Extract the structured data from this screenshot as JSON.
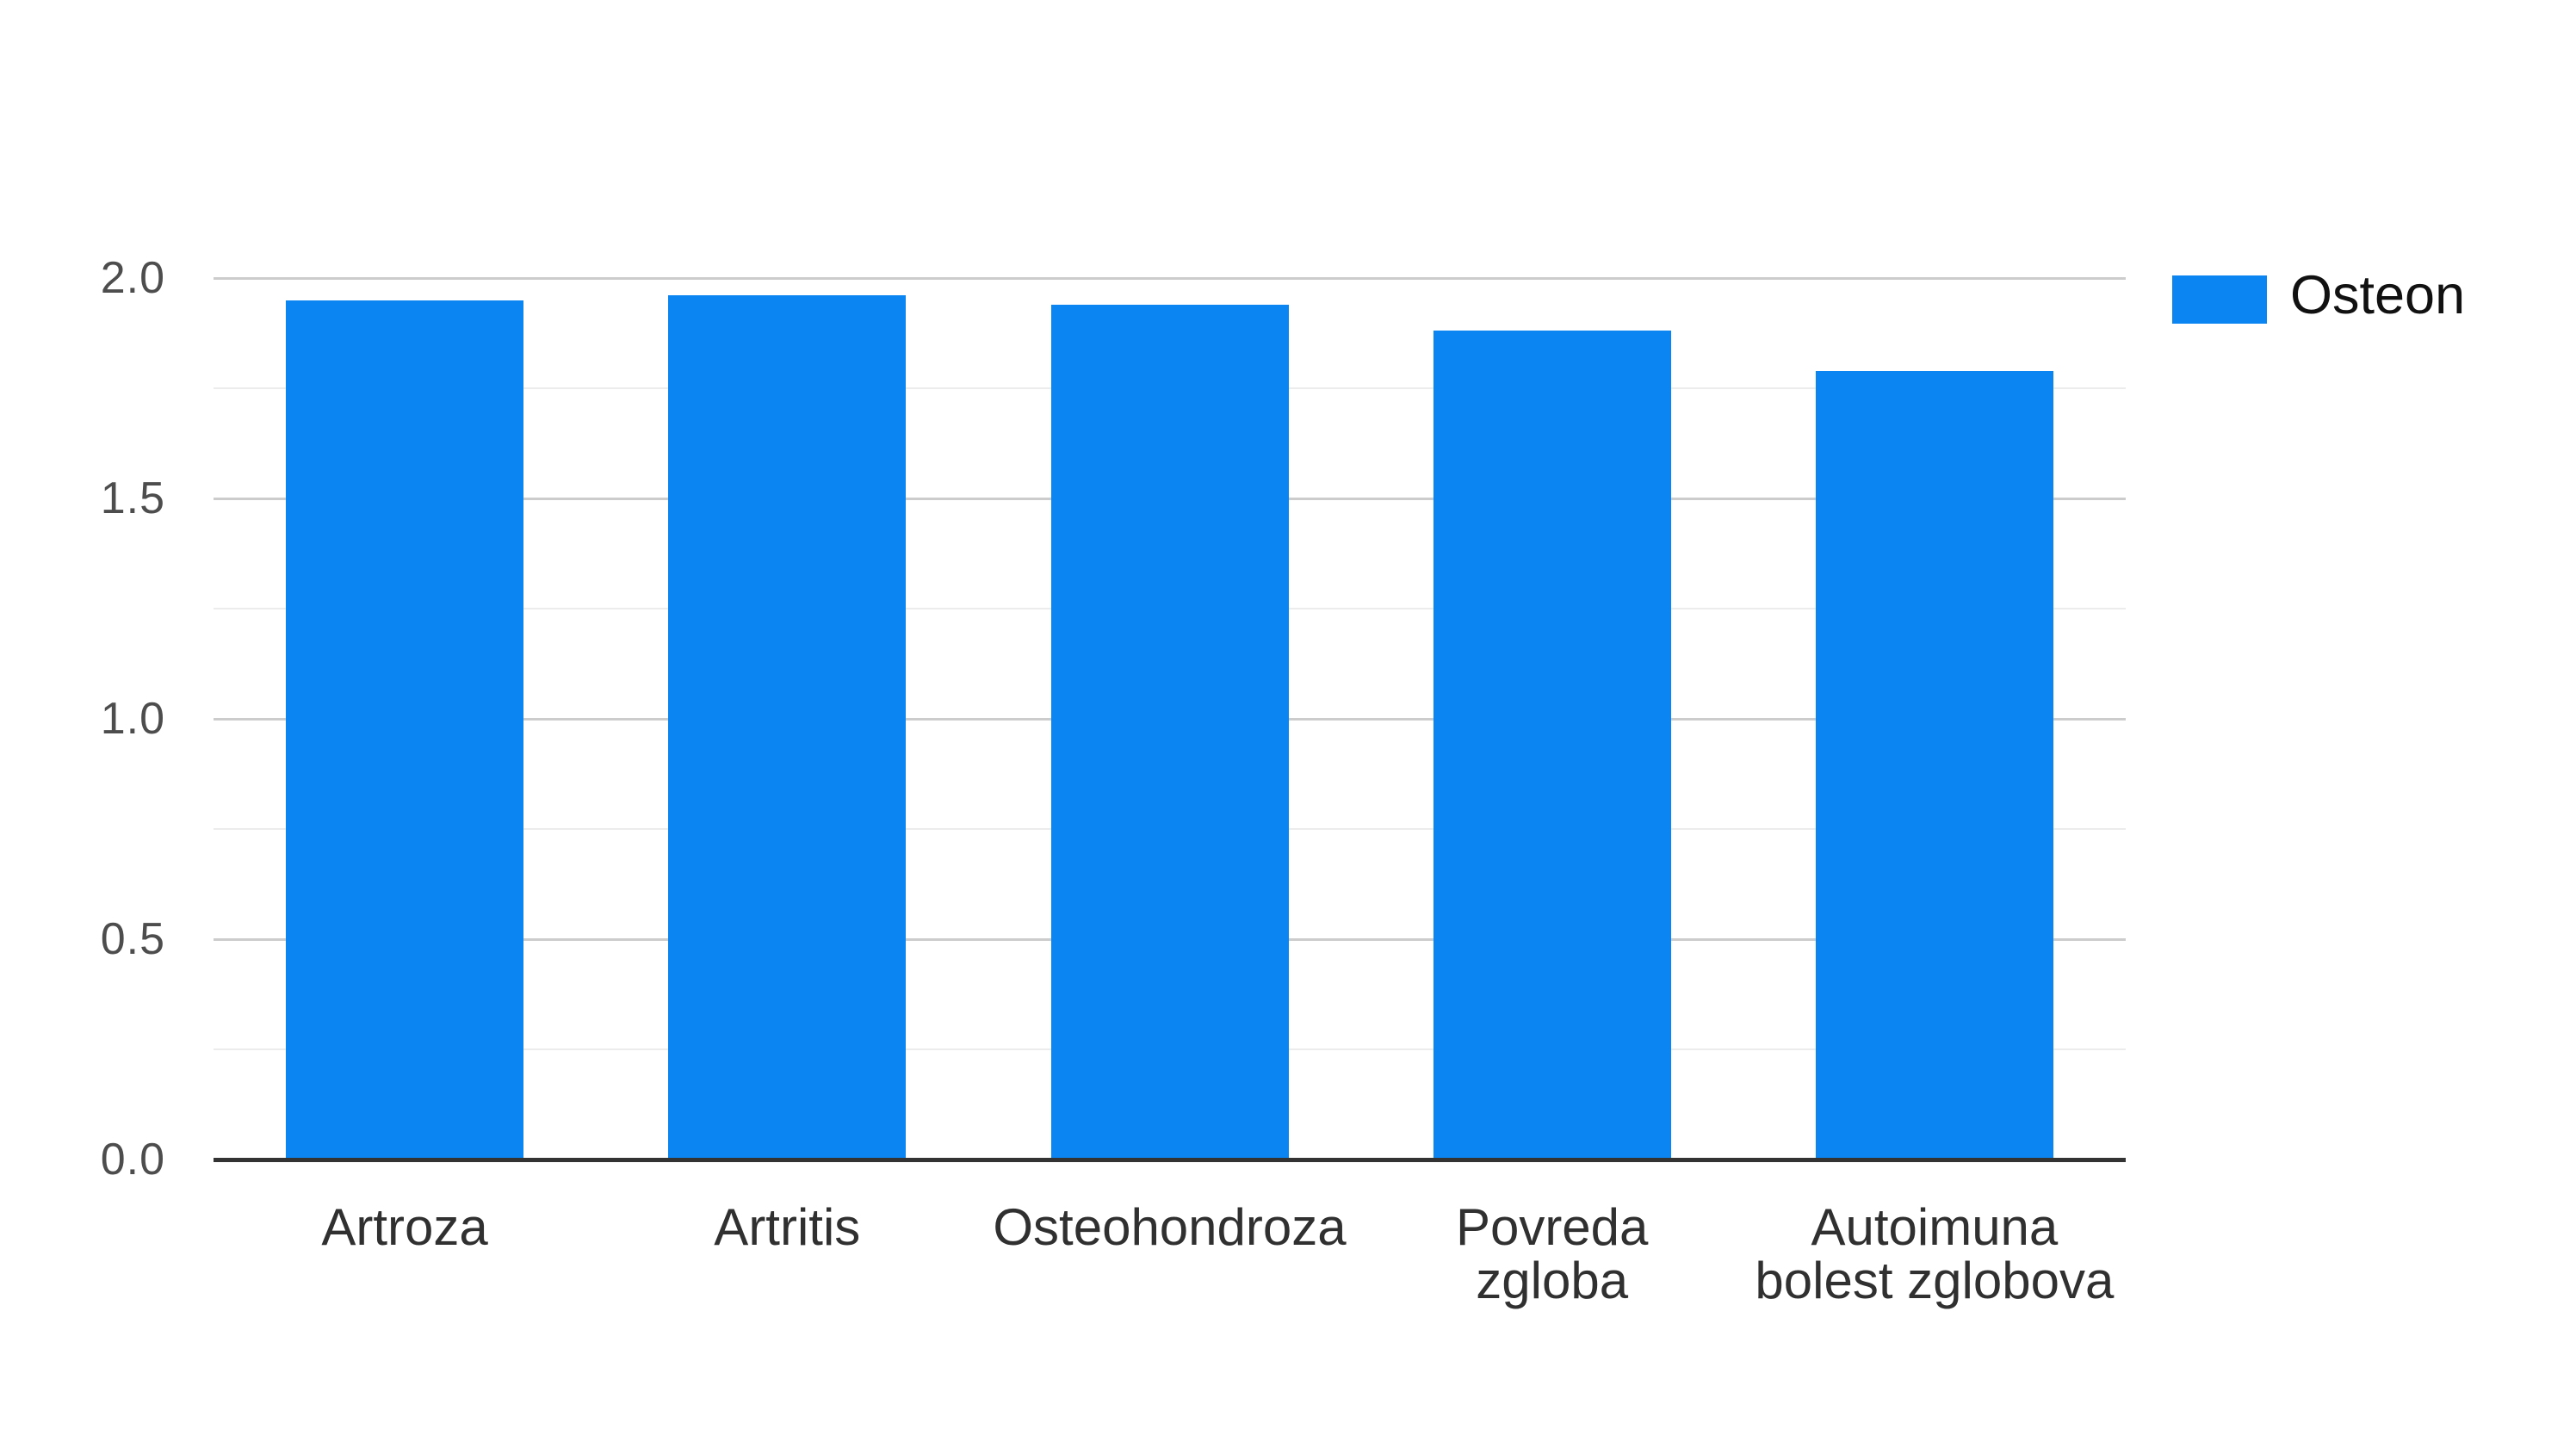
{
  "chart_data": {
    "type": "bar",
    "title": "",
    "xlabel": "",
    "ylabel": "",
    "categories": [
      "Artroza",
      "Artritis",
      "Osteohondroza",
      "Povreda zgloba",
      "Autoimuna bolest zglobova"
    ],
    "category_lines": [
      [
        "Artroza"
      ],
      [
        "Artritis"
      ],
      [
        "Osteohondroza"
      ],
      [
        "Povreda",
        "zgloba"
      ],
      [
        "Autoimuna",
        "bolest zglobova"
      ]
    ],
    "series": [
      {
        "name": "Osteon",
        "values": [
          1.95,
          1.96,
          1.94,
          1.88,
          1.79
        ],
        "color": "#0b85f2"
      }
    ],
    "ylim": [
      0.0,
      2.0
    ],
    "y_major_ticks": [
      0.0,
      0.5,
      1.0,
      1.5,
      2.0
    ],
    "y_tick_labels": [
      "0.0",
      "0.5",
      "1.0",
      "1.5",
      "2.0"
    ],
    "y_minor_step": 0.25,
    "grid": true,
    "legend_position": "right"
  },
  "legend": {
    "label": "Osteon"
  },
  "colors": {
    "bar": "#0b85f2",
    "gridline_major": "#cccccc",
    "gridline_minor": "#ececec",
    "baseline": "#333333",
    "y_axis_text": "#4d4d4d",
    "x_axis_text": "#303030",
    "legend_text": "#111111",
    "background": "#ffffff"
  }
}
